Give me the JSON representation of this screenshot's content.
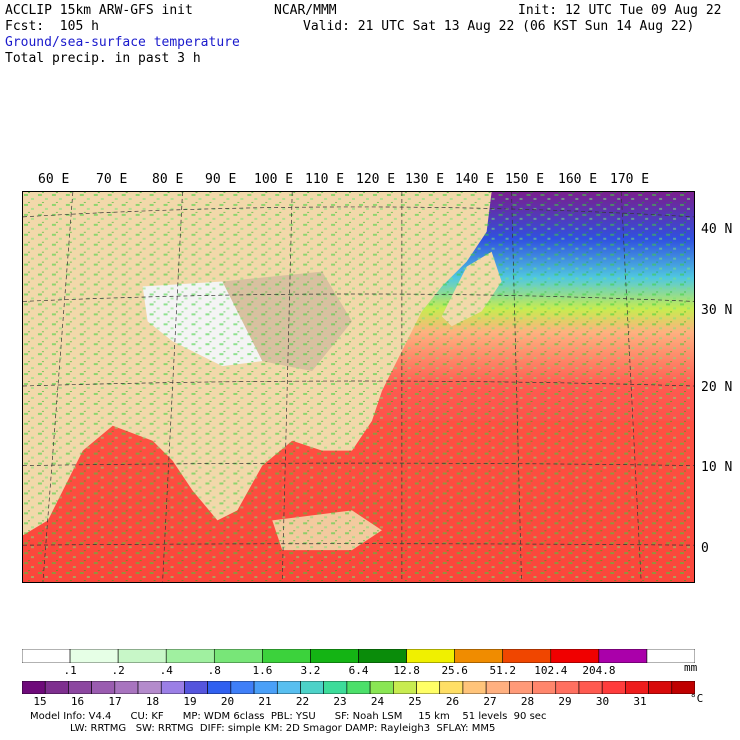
{
  "header": {
    "model_line": "ACCLIP 15km ARW-GFS init",
    "org": "NCAR/MMM",
    "init": "Init: 12 UTC Tue 09 Aug 22",
    "fcst": "Fcst:  105 h",
    "valid": "Valid: 21 UTC Sat 13 Aug 22 (06 KST Sun 14 Aug 22)",
    "field1": "Ground/sea-surface temperature",
    "field2": "Total precip. in past 3 h"
  },
  "map": {
    "lon_labels": [
      "60 E",
      "70 E",
      "80 E",
      "90 E",
      "100 E",
      "110 E",
      "120 E",
      "130 E",
      "140 E",
      "150 E",
      "160 E",
      "170 E"
    ],
    "lat_labels": [
      "40 N",
      "30 N",
      "20 N",
      "10 N",
      "0"
    ]
  },
  "precip_bar": {
    "colors": [
      "#ffffff",
      "#e6ffe6",
      "#c8f7c8",
      "#a0f0a0",
      "#78e678",
      "#3cd23c",
      "#14b414",
      "#0a8c0a",
      "#f0f000",
      "#f08c00",
      "#f04600",
      "#f00000",
      "#aa00aa",
      "#ffffff"
    ],
    "labels": [
      ".1",
      ".2",
      ".4",
      ".8",
      "1.6",
      "3.2",
      "6.4",
      "12.8",
      "25.6",
      "51.2",
      "102.4",
      "204.8"
    ],
    "unit": "mm"
  },
  "temp_bar": {
    "colors": [
      "#6e0a7a",
      "#7e2f8f",
      "#8c47a0",
      "#9a5cb0",
      "#a874bf",
      "#b48bcc",
      "#9b7fe6",
      "#5555dd",
      "#3060f0",
      "#3f7ff8",
      "#4aa0f8",
      "#58bff0",
      "#4dd2c8",
      "#3ddc9a",
      "#4ce06a",
      "#8ae654",
      "#c8ec50",
      "#ffff66",
      "#ffdf66",
      "#ffc47a",
      "#ffb080",
      "#ff9a78",
      "#ff866c",
      "#ff7060",
      "#ff5a50",
      "#ff3c3c",
      "#ee1c1c",
      "#d80a0a",
      "#bf0000"
    ],
    "labels": [
      "15",
      "16",
      "17",
      "18",
      "19",
      "20",
      "21",
      "22",
      "23",
      "24",
      "25",
      "26",
      "27",
      "28",
      "29",
      "30",
      "31"
    ],
    "unit": "°C"
  },
  "footer": {
    "line1": "Model Info: V4.4      CU: KF      MP: WDM 6class  PBL: YSU      SF: Noah LSM     15 km    51 levels  90 sec",
    "line2": "LW: RRTMG   SW: RRTMG  DIFF: simple KM: 2D Smagor DAMP: Rayleigh3  SFLAY: MM5"
  }
}
